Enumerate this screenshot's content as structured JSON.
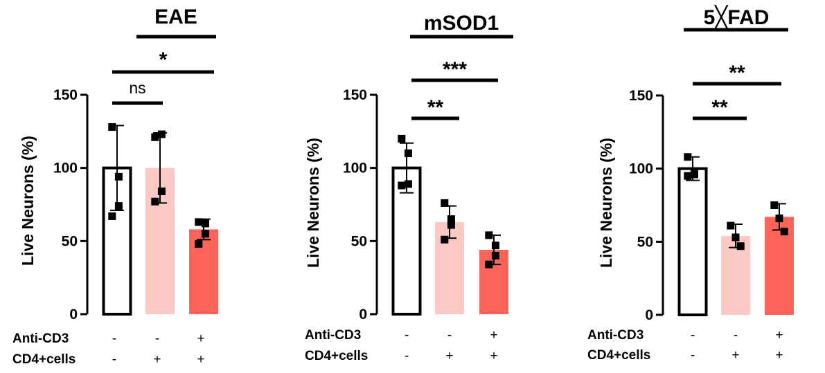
{
  "chart_data": [
    {
      "type": "bar",
      "title": "EAE",
      "ylabel": "Live Neurons (%)",
      "ylim": [
        0,
        150
      ],
      "yticks": [
        "0",
        "50",
        "100",
        "150"
      ],
      "condition_rows": [
        {
          "label": "Anti-CD3",
          "values": [
            "-",
            "-",
            "+"
          ]
        },
        {
          "label": "CD4+cells",
          "values": [
            "-",
            "+",
            "+"
          ]
        }
      ],
      "bars": [
        {
          "mean": 100,
          "err": 29,
          "color": "#ffffff",
          "points": [
            128,
            94,
            74,
            67
          ]
        },
        {
          "mean": 100,
          "err": 24,
          "color": "#fdc9c5",
          "points": [
            121,
            123,
            84,
            77
          ]
        },
        {
          "mean": 58,
          "err": 7,
          "color": "#fc6459",
          "points": [
            63,
            62,
            55,
            48
          ]
        }
      ],
      "significance": [
        {
          "from": 0,
          "to": 1,
          "label": "ns"
        },
        {
          "from": 0,
          "to": 2,
          "label": "*"
        }
      ]
    },
    {
      "type": "bar",
      "title": "mSOD1",
      "ylabel": "Live Neurons (%)",
      "ylim": [
        0,
        150
      ],
      "yticks": [
        "0",
        "50",
        "100",
        "150"
      ],
      "condition_rows": [
        {
          "label": "Anti-CD3",
          "values": [
            "-",
            "-",
            "+"
          ]
        },
        {
          "label": "CD4+cells",
          "values": [
            "-",
            "+",
            "+"
          ]
        }
      ],
      "bars": [
        {
          "mean": 100,
          "err": 17,
          "color": "#ffffff",
          "points": [
            120,
            110,
            89,
            88
          ]
        },
        {
          "mean": 63,
          "err": 11,
          "color": "#fdc9c5",
          "points": [
            76,
            65,
            61,
            51
          ]
        },
        {
          "mean": 44,
          "err": 10,
          "color": "#fc6459",
          "points": [
            54,
            47,
            40,
            34
          ]
        }
      ],
      "significance": [
        {
          "from": 0,
          "to": 1,
          "label": "**"
        },
        {
          "from": 0,
          "to": 2,
          "label": "***"
        }
      ]
    },
    {
      "type": "bar",
      "title": "5╳FAD",
      "ylabel": "Live Neurons (%)",
      "ylim": [
        0,
        150
      ],
      "yticks": [
        "0",
        "50",
        "100",
        "150"
      ],
      "condition_rows": [
        {
          "label": "Anti-CD3",
          "values": [
            "-",
            "-",
            "+"
          ]
        },
        {
          "label": "CD4+cells",
          "values": [
            "-",
            "+",
            "+"
          ]
        }
      ],
      "bars": [
        {
          "mean": 100,
          "err": 8,
          "color": "#ffffff",
          "points": [
            108,
            97,
            96,
            95
          ]
        },
        {
          "mean": 54,
          "err": 8,
          "color": "#fdc9c5",
          "points": [
            61,
            53,
            47
          ]
        },
        {
          "mean": 67,
          "err": 9,
          "color": "#fc6459",
          "points": [
            75,
            66,
            57
          ]
        }
      ],
      "significance": [
        {
          "from": 0,
          "to": 1,
          "label": "**"
        },
        {
          "from": 0,
          "to": 2,
          "label": "**"
        }
      ]
    }
  ]
}
